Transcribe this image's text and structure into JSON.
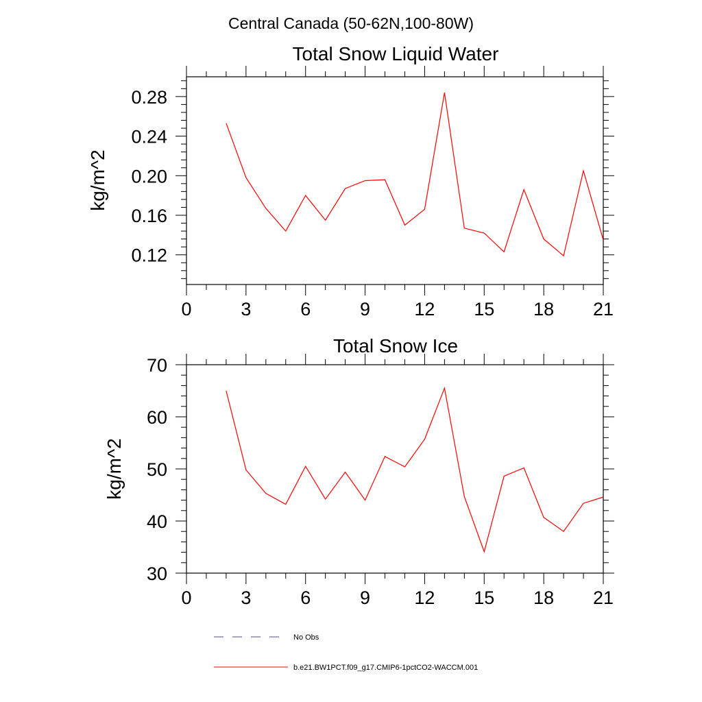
{
  "figure_title": "Central Canada (50-62N,100-80W)",
  "chart_data": [
    {
      "type": "line",
      "title": "Total Snow Liquid Water",
      "xlabel": "",
      "ylabel": "kg/m^2",
      "xlim": [
        0,
        21
      ],
      "ylim": [
        0.09,
        0.3
      ],
      "xticks": [
        0,
        3,
        6,
        9,
        12,
        15,
        18,
        21
      ],
      "yticks": [
        0.12,
        0.16,
        0.2,
        0.24,
        0.28
      ],
      "ytick_labels": [
        "0.12",
        "0.16",
        "0.20",
        "0.24",
        "0.28"
      ],
      "series": [
        {
          "color": "#ff0000",
          "x": [
            2,
            3,
            4,
            5,
            6,
            7,
            8,
            9,
            10,
            11,
            12,
            13,
            14,
            15,
            16,
            17,
            18,
            19,
            20,
            21
          ],
          "y": [
            0.253,
            0.198,
            0.167,
            0.144,
            0.18,
            0.155,
            0.187,
            0.195,
            0.196,
            0.15,
            0.166,
            0.284,
            0.147,
            0.142,
            0.123,
            0.186,
            0.136,
            0.119,
            0.205,
            0.135
          ]
        }
      ]
    },
    {
      "type": "line",
      "title": "Total Snow Ice",
      "xlabel": "",
      "ylabel": "kg/m^2",
      "xlim": [
        0,
        21
      ],
      "ylim": [
        30,
        70
      ],
      "xticks": [
        0,
        3,
        6,
        9,
        12,
        15,
        18,
        21
      ],
      "yticks": [
        30,
        40,
        50,
        60,
        70
      ],
      "ytick_labels": [
        "30",
        "40",
        "50",
        "60",
        "70"
      ],
      "series": [
        {
          "color": "#ff0000",
          "x": [
            2,
            3,
            4,
            5,
            6,
            7,
            8,
            9,
            10,
            11,
            12,
            13,
            14,
            15,
            16,
            17,
            18,
            19,
            20,
            21
          ],
          "y": [
            65.0,
            49.8,
            45.3,
            43.2,
            50.5,
            44.2,
            49.4,
            44.0,
            52.4,
            50.4,
            55.7,
            65.5,
            44.7,
            34.1,
            48.6,
            50.2,
            40.7,
            38.0,
            43.4,
            44.6
          ]
        }
      ]
    }
  ],
  "legend": {
    "position": "bottom",
    "items": [
      {
        "label": "No Obs",
        "color": "#4d4d80",
        "style": "dashed"
      },
      {
        "label": "b.e21.BW1PCT.f09_g17.CMIP6-1pctCO2-WACCM.001",
        "color": "#ff0000",
        "style": "solid"
      }
    ]
  }
}
